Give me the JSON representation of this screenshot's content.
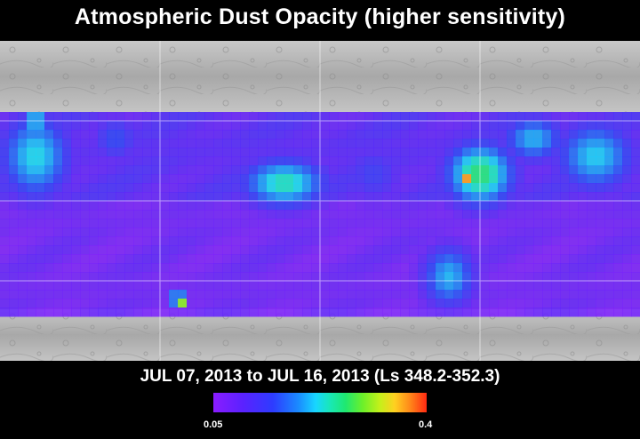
{
  "title": "Atmospheric Dust Opacity (higher sensitivity)",
  "date_range": "JUL 07, 2013 to JUL 16, 2013 (Ls 348.2-352.3)",
  "colorbar": {
    "min_label": "0.05",
    "max_label": "0.4",
    "min_value": 0.05,
    "max_value": 0.4
  },
  "colors": {
    "background": "#000000",
    "terrain": "#b4b4b4",
    "grid": "#ffffff",
    "low_opacity": "#8a1cff",
    "high_opacity": "#ff2a12"
  }
}
